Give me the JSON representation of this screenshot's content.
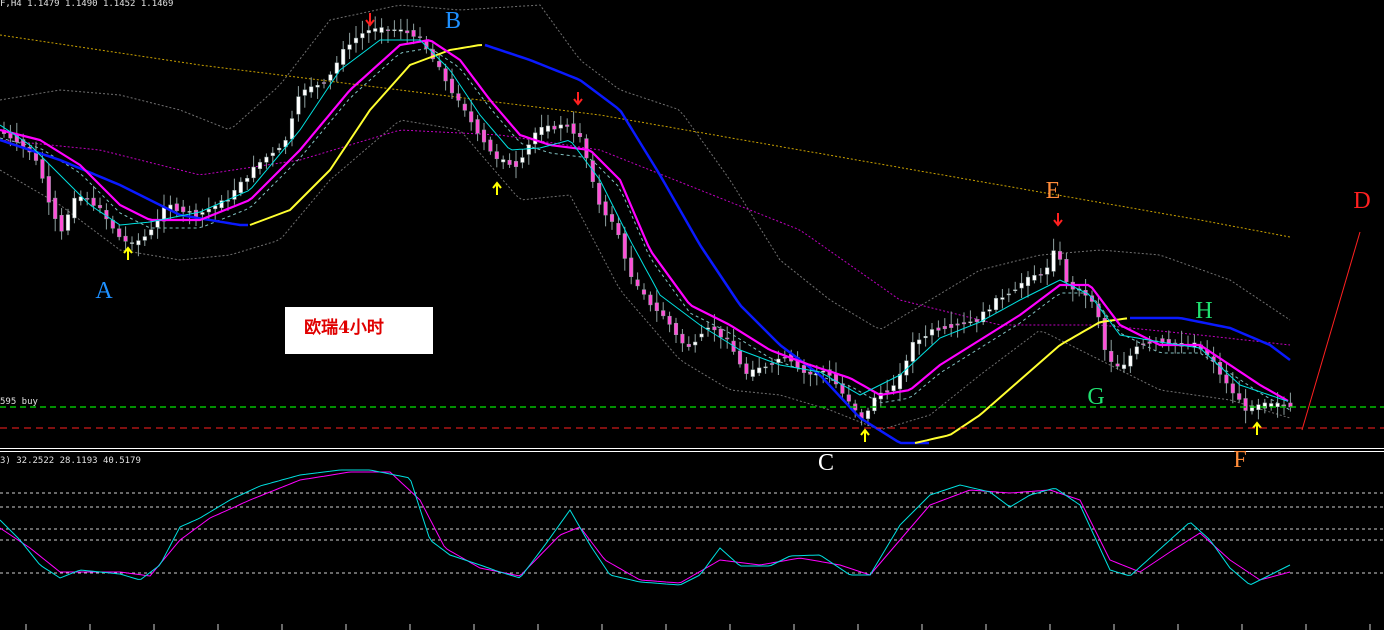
{
  "header": {
    "price_line": "F,H4  1.1479 1.1490 1.1452 1.1469",
    "buy_line_label": "595 buy",
    "oscillator_line": "3) 32.2522 28.1193 40.5179"
  },
  "caption": {
    "text": "欧瑞4小时"
  },
  "colors": {
    "background": "#000000",
    "bull_candle": "#ffffff",
    "bear_candle": "#ff4fd8",
    "wick": "#8fa0a0",
    "ma_fast": "#00e0e0",
    "ma_mid": "#ff00ff",
    "ma_slow_blue": "#0a1aff",
    "ma_slow_yellow": "#ffff30",
    "ma_long_dotted": "#c8a000",
    "ma_mid_dotted": "#c000c0",
    "bands": "#707070",
    "buy_line": "#00c000",
    "stop_line": "#ff2020",
    "stoch_k": "#00e0e0",
    "stoch_d": "#ff00ff",
    "arrow_up": "#ffff00",
    "arrow_down": "#ff2020"
  },
  "chart_data": {
    "type": "candlestick",
    "timeframe": "H4",
    "last_bar": {
      "open": 1.1479,
      "high": 1.149,
      "low": 1.1452,
      "close": 1.1469
    },
    "price_pixel_fits": "see script",
    "wave_labels": [
      {
        "text": "A",
        "bar_index": 22,
        "color": "#1e90ff"
      },
      {
        "text": "B",
        "bar_index": 66,
        "color": "#1e90ff"
      },
      {
        "text": "C",
        "bar_index": 118,
        "color": "#ffffff"
      },
      {
        "text": "D",
        "bar_index": 194,
        "color": "#ff2020"
      },
      {
        "text": "E",
        "bar_index": 150,
        "color": "#ff8c3a"
      },
      {
        "text": "F",
        "bar_index": 177,
        "color": "#ff8c3a"
      },
      {
        "text": "G",
        "bar_index": 156,
        "color": "#20e070"
      },
      {
        "text": "H",
        "bar_index": 172,
        "color": "#20e070"
      }
    ],
    "oscillator": {
      "name": "Stochastic",
      "values": [
        32.2522,
        28.1193,
        40.5179
      ],
      "levels": [
        20,
        50,
        60,
        80
      ]
    }
  }
}
